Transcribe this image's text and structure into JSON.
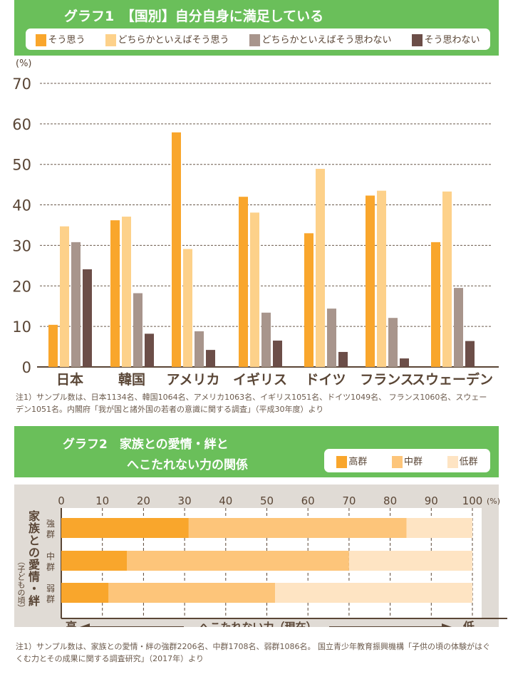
{
  "chart_data": [
    {
      "type": "bar",
      "title": "グラフ1　【国別】自分自身に満足している",
      "ylabel": "(%)",
      "ylim": [
        0,
        70
      ],
      "yticks": [
        0,
        10,
        20,
        30,
        40,
        50,
        60,
        70
      ],
      "grid": true,
      "legend_position": "top",
      "categories": [
        "日本",
        "韓国",
        "アメリカ",
        "イギリス",
        "ドイツ",
        "フランス",
        "スウェーデン"
      ],
      "series": [
        {
          "name": "そう思う",
          "color": "#f9a62c",
          "values": [
            10.4,
            36.2,
            57.9,
            42.0,
            33.0,
            42.3,
            30.8
          ]
        },
        {
          "name": "どちらかといえばそう思う",
          "color": "#fdd18a",
          "values": [
            34.7,
            37.1,
            29.1,
            38.1,
            48.9,
            43.5,
            43.3
          ]
        },
        {
          "name": "どちらかといえばそう思わない",
          "color": "#a8958c",
          "values": [
            30.8,
            18.2,
            8.8,
            13.4,
            14.4,
            12.1,
            19.5
          ]
        },
        {
          "name": "そう思わない",
          "color": "#6c4e48",
          "values": [
            24.1,
            8.2,
            4.2,
            6.5,
            3.7,
            2.1,
            6.4
          ]
        }
      ],
      "note": "注1）サンプル数は、日本1134名、韓国1064名、アメリカ1063名、イギリス1051名、ドイツ1049名、 フランス1060名、スウェーデン1051名。内閣府「我が国と諸外国の若者の意識に関する調査」（平成30年度）より"
    },
    {
      "type": "bar",
      "orientation": "horizontal",
      "stacked": true,
      "title_line1": "グラフ2　家族との愛情・絆と",
      "title_line2": "へこたれない力の関係",
      "xlim": [
        0,
        100
      ],
      "xticks": [
        0,
        10,
        20,
        30,
        40,
        50,
        60,
        70,
        80,
        90,
        100
      ],
      "xunit": "(%)",
      "legend_position": "top-right",
      "ylabel": "家族との愛情・絆",
      "ylabel_sub": "（子どもの頃）",
      "categories": [
        "強群",
        "中群",
        "弱群"
      ],
      "series": [
        {
          "name": "高群",
          "color": "#f9a62c",
          "values": [
            31,
            16,
            11.5
          ]
        },
        {
          "name": "中群",
          "color": "#fdc57a",
          "values": [
            53,
            54,
            40.5
          ]
        },
        {
          "name": "低群",
          "color": "#fee4c3",
          "values": [
            16,
            30,
            48
          ]
        }
      ],
      "xaxis_left": "高",
      "xaxis_center": "へこたれない力（現在）",
      "xaxis_right": "低",
      "note": "注1）サンプル数は、家族との愛情・絆の強群2206名、中群1708名、弱群1086名。 国立青少年教育振興機構「子供の頃の体験がはぐくむ力とその成果に関する調査研究」（2017年）より"
    }
  ]
}
